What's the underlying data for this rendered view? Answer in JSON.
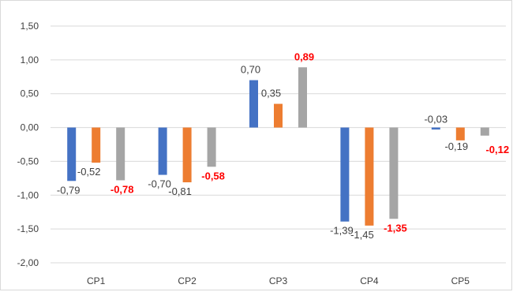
{
  "chart_data": {
    "type": "bar",
    "title": "",
    "xlabel": "",
    "ylabel": "",
    "categories": [
      "CP1",
      "CP2",
      "CP3",
      "CP4",
      "CP5"
    ],
    "ylim": [
      -2.0,
      1.5
    ],
    "yticks": [
      1.5,
      1.0,
      0.5,
      0.0,
      -0.5,
      -1.0,
      -1.5,
      -2.0
    ],
    "ytick_labels": [
      "1,50",
      "1,00",
      "0,50",
      "0,00",
      "-0,50",
      "-1,00",
      "-1,50",
      "-2,00"
    ],
    "grid": true,
    "legend": "none",
    "series": [
      {
        "color": "#4472c4",
        "values": [
          -0.79,
          -0.7,
          0.7,
          -1.39,
          -0.03
        ],
        "labels": [
          "-0,79",
          "-0,70",
          "0,70",
          "-1,39",
          "-0,03"
        ],
        "label_style": "normal"
      },
      {
        "color": "#ed7d31",
        "values": [
          -0.52,
          -0.81,
          0.35,
          -1.45,
          -0.19
        ],
        "labels": [
          "-0,52",
          "-0,81",
          "0,35",
          "-1,45",
          "-0,19"
        ],
        "label_style": "normal"
      },
      {
        "color": "#a5a5a5",
        "values": [
          -0.78,
          -0.58,
          0.89,
          -1.35,
          -0.12
        ],
        "labels": [
          "-0,78",
          "-0,58",
          "0,89",
          "-1,35",
          "-0,12"
        ],
        "label_style": "highlight",
        "label_color": "#ff0000"
      }
    ]
  }
}
